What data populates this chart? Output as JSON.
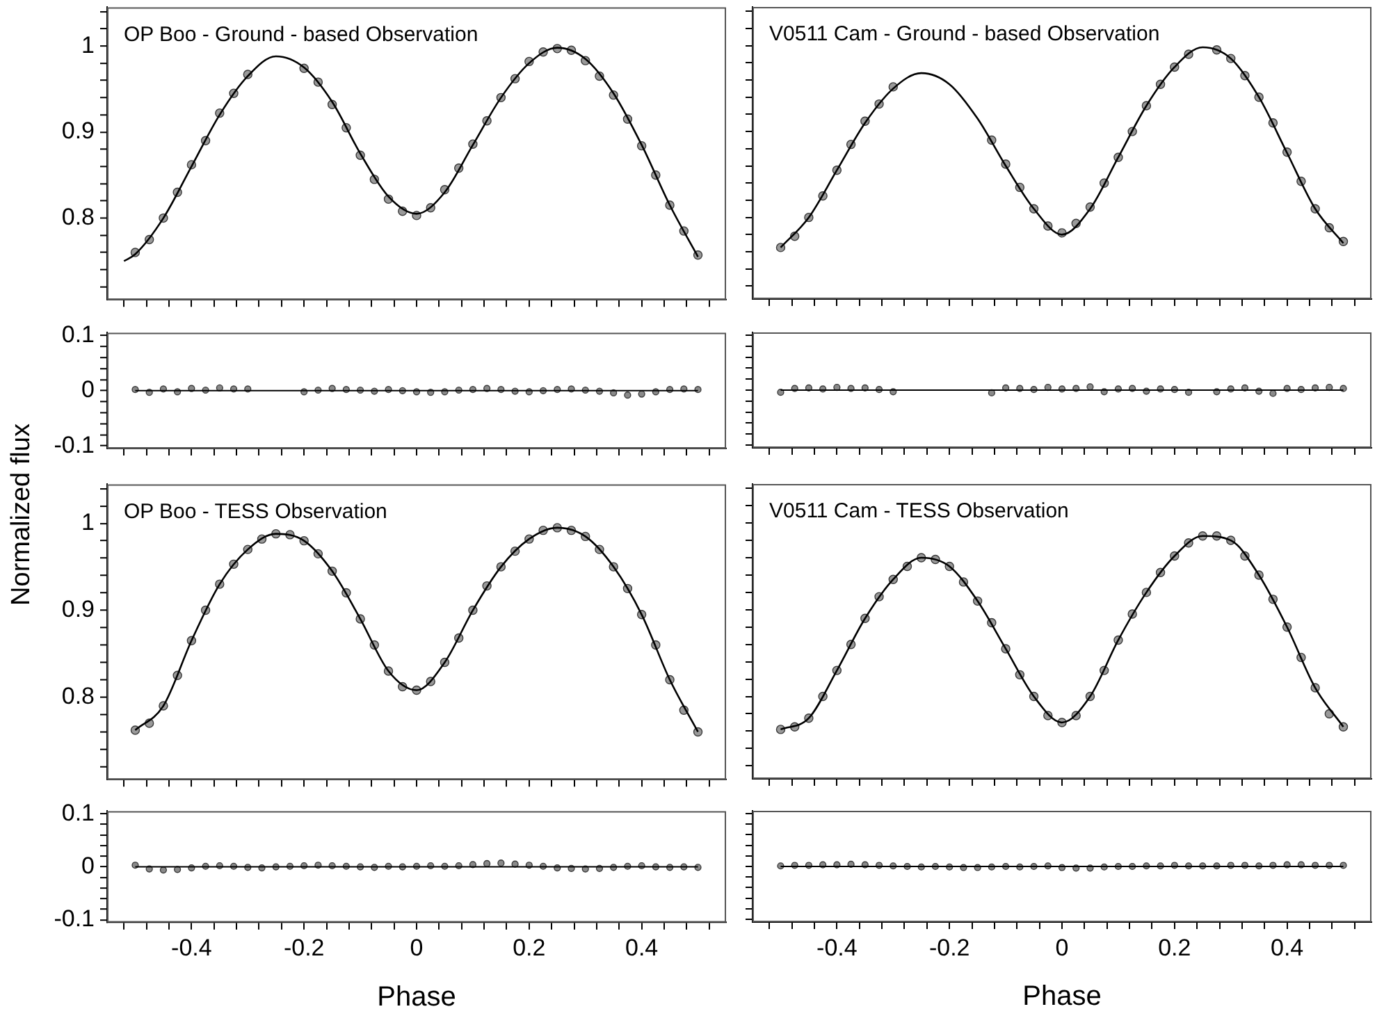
{
  "chart_data": [
    {
      "type": "scatter",
      "title": "OP Boo - Ground - based Observation",
      "ylabel": "Normalized flux",
      "xlim": [
        -0.55,
        0.55
      ],
      "xticks": [
        {
          "value": -0.52,
          "label": null
        },
        {
          "value": -0.48,
          "label": null
        },
        {
          "value": -0.44,
          "label": null
        },
        -0.4,
        {
          "value": -0.36,
          "label": null
        },
        {
          "value": -0.32,
          "label": null
        },
        {
          "value": -0.28,
          "label": null
        },
        {
          "value": -0.24,
          "label": null
        },
        -0.2,
        {
          "value": -0.16,
          "label": null
        },
        {
          "value": -0.12,
          "label": null
        },
        {
          "value": -0.08,
          "label": null
        },
        {
          "value": -0.04,
          "label": null
        },
        0,
        {
          "value": 0.04,
          "label": null
        },
        {
          "value": 0.08,
          "label": null
        },
        {
          "value": 0.12,
          "label": null
        },
        {
          "value": 0.16,
          "label": null
        },
        0.2,
        {
          "value": 0.24,
          "label": null
        },
        {
          "value": 0.28,
          "label": null
        },
        {
          "value": 0.32,
          "label": null
        },
        {
          "value": 0.36,
          "label": null
        },
        0.4,
        {
          "value": 0.44,
          "label": null
        },
        {
          "value": 0.48,
          "label": null
        },
        {
          "value": 0.52,
          "label": null
        }
      ],
      "ylim": [
        0.705,
        1.045
      ],
      "yticks": [
        {
          "value": 0.72,
          "label": null
        },
        {
          "value": 0.74,
          "label": null
        },
        {
          "value": 0.76,
          "label": null
        },
        {
          "value": 0.78,
          "label": null
        },
        0.8,
        {
          "value": 0.82,
          "label": null
        },
        {
          "value": 0.84,
          "label": null
        },
        {
          "value": 0.86,
          "label": null
        },
        {
          "value": 0.88,
          "label": null
        },
        0.9,
        {
          "value": 0.92,
          "label": null
        },
        {
          "value": 0.94,
          "label": null
        },
        {
          "value": 0.96,
          "label": null
        },
        {
          "value": 0.98,
          "label": null
        },
        1,
        {
          "value": 1.02,
          "label": null
        },
        {
          "value": 1.04,
          "label": null
        }
      ],
      "tick_labels": "y",
      "series": [
        {
          "type": "scatter",
          "marker": "circle",
          "color": "#9a9a9a",
          "x": [
            -0.5,
            -0.475,
            -0.45,
            -0.425,
            -0.4,
            -0.375,
            -0.35,
            -0.325,
            -0.3,
            -0.2,
            -0.175,
            -0.15,
            -0.125,
            -0.1,
            -0.075,
            -0.05,
            -0.025,
            0,
            0.025,
            0.05,
            0.075,
            0.1,
            0.125,
            0.15,
            0.175,
            0.2,
            0.225,
            0.25,
            0.275,
            0.3,
            0.325,
            0.35,
            0.375,
            0.4,
            0.425,
            0.45,
            0.475,
            0.5
          ],
          "values": [
            0.76,
            0.775,
            0.8,
            0.83,
            0.862,
            0.89,
            0.922,
            0.945,
            0.967,
            0.974,
            0.958,
            0.932,
            0.905,
            0.873,
            0.845,
            0.822,
            0.808,
            0.803,
            0.812,
            0.833,
            0.858,
            0.886,
            0.913,
            0.94,
            0.962,
            0.982,
            0.993,
            0.997,
            0.995,
            0.983,
            0.965,
            0.943,
            0.915,
            0.884,
            0.85,
            0.815,
            0.785,
            0.757
          ]
        },
        {
          "type": "line",
          "color": "#000000",
          "x": [
            -0.52,
            -0.5,
            -0.45,
            -0.4,
            -0.35,
            -0.3,
            -0.25,
            -0.2,
            -0.15,
            -0.1,
            -0.05,
            0,
            0.05,
            0.1,
            0.15,
            0.2,
            0.25,
            0.3,
            0.35,
            0.4,
            0.45,
            0.5
          ],
          "values": [
            0.75,
            0.758,
            0.8,
            0.86,
            0.92,
            0.965,
            0.988,
            0.975,
            0.935,
            0.875,
            0.825,
            0.805,
            0.83,
            0.885,
            0.94,
            0.98,
            0.998,
            0.985,
            0.945,
            0.885,
            0.815,
            0.755
          ]
        }
      ]
    },
    {
      "type": "scatter",
      "title": "V0511 Cam - Ground - based Observation",
      "xlim": [
        -0.55,
        0.55
      ],
      "xticks": [
        {
          "value": -0.52,
          "label": null
        },
        {
          "value": -0.48,
          "label": null
        },
        {
          "value": -0.44,
          "label": null
        },
        -0.4,
        {
          "value": -0.36,
          "label": null
        },
        {
          "value": -0.32,
          "label": null
        },
        {
          "value": -0.28,
          "label": null
        },
        {
          "value": -0.24,
          "label": null
        },
        -0.2,
        {
          "value": -0.16,
          "label": null
        },
        {
          "value": -0.12,
          "label": null
        },
        {
          "value": -0.08,
          "label": null
        },
        {
          "value": -0.04,
          "label": null
        },
        0,
        {
          "value": 0.04,
          "label": null
        },
        {
          "value": 0.08,
          "label": null
        },
        {
          "value": 0.12,
          "label": null
        },
        {
          "value": 0.16,
          "label": null
        },
        0.2,
        {
          "value": 0.24,
          "label": null
        },
        {
          "value": 0.28,
          "label": null
        },
        {
          "value": 0.32,
          "label": null
        },
        {
          "value": 0.36,
          "label": null
        },
        0.4,
        {
          "value": 0.44,
          "label": null
        },
        {
          "value": 0.48,
          "label": null
        },
        {
          "value": 0.52,
          "label": null
        }
      ],
      "ylim": [
        0.705,
        1.045
      ],
      "yticks": [
        {
          "value": 0.72,
          "label": null
        },
        {
          "value": 0.74,
          "label": null
        },
        {
          "value": 0.76,
          "label": null
        },
        {
          "value": 0.78,
          "label": null
        },
        0.8,
        {
          "value": 0.82,
          "label": null
        },
        {
          "value": 0.84,
          "label": null
        },
        {
          "value": 0.86,
          "label": null
        },
        {
          "value": 0.88,
          "label": null
        },
        0.9,
        {
          "value": 0.92,
          "label": null
        },
        {
          "value": 0.94,
          "label": null
        },
        {
          "value": 0.96,
          "label": null
        },
        {
          "value": 0.98,
          "label": null
        },
        1,
        {
          "value": 1.02,
          "label": null
        },
        {
          "value": 1.04,
          "label": null
        }
      ],
      "tick_labels": false,
      "series": [
        {
          "type": "scatter",
          "marker": "circle",
          "color": "#9a9a9a",
          "x": [
            -0.5,
            -0.475,
            -0.45,
            -0.425,
            -0.4,
            -0.375,
            -0.35,
            -0.325,
            -0.3,
            -0.125,
            -0.1,
            -0.075,
            -0.05,
            -0.025,
            0,
            0.025,
            0.05,
            0.075,
            0.1,
            0.125,
            0.15,
            0.175,
            0.2,
            0.225,
            0.275,
            0.3,
            0.325,
            0.35,
            0.375,
            0.4,
            0.425,
            0.45,
            0.475,
            0.5
          ],
          "values": [
            0.765,
            0.778,
            0.8,
            0.825,
            0.855,
            0.885,
            0.912,
            0.932,
            0.952,
            0.89,
            0.862,
            0.835,
            0.81,
            0.79,
            0.782,
            0.793,
            0.812,
            0.84,
            0.87,
            0.9,
            0.93,
            0.955,
            0.975,
            0.99,
            0.995,
            0.985,
            0.965,
            0.94,
            0.91,
            0.876,
            0.842,
            0.81,
            0.788,
            0.772
          ]
        },
        {
          "type": "line",
          "color": "#000000",
          "x": [
            -0.5,
            -0.45,
            -0.4,
            -0.35,
            -0.3,
            -0.25,
            -0.2,
            -0.15,
            -0.1,
            -0.05,
            0,
            0.05,
            0.1,
            0.15,
            0.2,
            0.25,
            0.3,
            0.35,
            0.4,
            0.45,
            0.5
          ],
          "values": [
            0.765,
            0.8,
            0.855,
            0.91,
            0.95,
            0.968,
            0.955,
            0.915,
            0.86,
            0.81,
            0.78,
            0.81,
            0.87,
            0.93,
            0.975,
            0.998,
            0.985,
            0.94,
            0.875,
            0.81,
            0.77
          ]
        }
      ]
    },
    {
      "type": "scatter",
      "xlim": [
        -0.55,
        0.55
      ],
      "xticks": [
        {
          "value": -0.52,
          "label": null
        },
        {
          "value": -0.48,
          "label": null
        },
        {
          "value": -0.44,
          "label": null
        },
        -0.4,
        {
          "value": -0.36,
          "label": null
        },
        {
          "value": -0.32,
          "label": null
        },
        {
          "value": -0.28,
          "label": null
        },
        {
          "value": -0.24,
          "label": null
        },
        -0.2,
        {
          "value": -0.16,
          "label": null
        },
        {
          "value": -0.12,
          "label": null
        },
        {
          "value": -0.08,
          "label": null
        },
        {
          "value": -0.04,
          "label": null
        },
        0,
        {
          "value": 0.04,
          "label": null
        },
        {
          "value": 0.08,
          "label": null
        },
        {
          "value": 0.12,
          "label": null
        },
        {
          "value": 0.16,
          "label": null
        },
        0.2,
        {
          "value": 0.24,
          "label": null
        },
        {
          "value": 0.28,
          "label": null
        },
        {
          "value": 0.32,
          "label": null
        },
        {
          "value": 0.36,
          "label": null
        },
        0.4,
        {
          "value": 0.44,
          "label": null
        },
        {
          "value": 0.48,
          "label": null
        },
        {
          "value": 0.52,
          "label": null
        }
      ],
      "ylim": [
        -0.105,
        0.105
      ],
      "yticks": [
        -0.1,
        {
          "value": -0.08,
          "label": null
        },
        {
          "value": -0.06,
          "label": null
        },
        {
          "value": -0.04,
          "label": null
        },
        {
          "value": -0.02,
          "label": null
        },
        0,
        {
          "value": 0.02,
          "label": null
        },
        {
          "value": 0.04,
          "label": null
        },
        {
          "value": 0.06,
          "label": null
        },
        {
          "value": 0.08,
          "label": null
        },
        0.1
      ],
      "tick_labels": "y",
      "series": [
        {
          "type": "scatter",
          "marker": "circle",
          "color": "#8a8a8a",
          "x": [
            -0.5,
            -0.475,
            -0.45,
            -0.425,
            -0.4,
            -0.375,
            -0.35,
            -0.325,
            -0.3,
            -0.2,
            -0.175,
            -0.15,
            -0.125,
            -0.1,
            -0.075,
            -0.05,
            -0.025,
            0,
            0.025,
            0.05,
            0.075,
            0.1,
            0.125,
            0.15,
            0.175,
            0.2,
            0.225,
            0.25,
            0.275,
            0.3,
            0.325,
            0.35,
            0.375,
            0.4,
            0.425,
            0.45,
            0.475,
            0.5
          ],
          "values": [
            0.002,
            -0.003,
            0.003,
            -0.002,
            0.004,
            0.001,
            0.005,
            0.003,
            0.003,
            -0.002,
            0.001,
            0.004,
            0.002,
            0.001,
            -0.001,
            0.002,
            0,
            -0.002,
            -0.003,
            -0.002,
            0.001,
            0.002,
            0.004,
            0.002,
            -0.001,
            -0.002,
            0,
            0.002,
            0.003,
            0.001,
            -0.001,
            -0.004,
            -0.008,
            -0.006,
            -0.002,
            0.002,
            0.003,
            0.002
          ]
        },
        {
          "type": "line",
          "color": "#000000",
          "x": [
            -0.5,
            0.5
          ],
          "values": [
            0,
            0
          ]
        }
      ]
    },
    {
      "type": "scatter",
      "xlim": [
        -0.55,
        0.55
      ],
      "xticks": [
        {
          "value": -0.52,
          "label": null
        },
        {
          "value": -0.48,
          "label": null
        },
        {
          "value": -0.44,
          "label": null
        },
        -0.4,
        {
          "value": -0.36,
          "label": null
        },
        {
          "value": -0.32,
          "label": null
        },
        {
          "value": -0.28,
          "label": null
        },
        {
          "value": -0.24,
          "label": null
        },
        -0.2,
        {
          "value": -0.16,
          "label": null
        },
        {
          "value": -0.12,
          "label": null
        },
        {
          "value": -0.08,
          "label": null
        },
        {
          "value": -0.04,
          "label": null
        },
        0,
        {
          "value": 0.04,
          "label": null
        },
        {
          "value": 0.08,
          "label": null
        },
        {
          "value": 0.12,
          "label": null
        },
        {
          "value": 0.16,
          "label": null
        },
        0.2,
        {
          "value": 0.24,
          "label": null
        },
        {
          "value": 0.28,
          "label": null
        },
        {
          "value": 0.32,
          "label": null
        },
        {
          "value": 0.36,
          "label": null
        },
        0.4,
        {
          "value": 0.44,
          "label": null
        },
        {
          "value": 0.48,
          "label": null
        },
        {
          "value": 0.52,
          "label": null
        }
      ],
      "ylim": [
        -0.105,
        0.105
      ],
      "yticks": [
        -0.1,
        {
          "value": -0.08,
          "label": null
        },
        {
          "value": -0.06,
          "label": null
        },
        {
          "value": -0.04,
          "label": null
        },
        {
          "value": -0.02,
          "label": null
        },
        0,
        {
          "value": 0.02,
          "label": null
        },
        {
          "value": 0.04,
          "label": null
        },
        {
          "value": 0.06,
          "label": null
        },
        {
          "value": 0.08,
          "label": null
        },
        0.1
      ],
      "tick_labels": false,
      "series": [
        {
          "type": "scatter",
          "marker": "circle",
          "color": "#8a8a8a",
          "x": [
            -0.5,
            -0.475,
            -0.45,
            -0.425,
            -0.4,
            -0.375,
            -0.35,
            -0.325,
            -0.3,
            -0.125,
            -0.1,
            -0.075,
            -0.05,
            -0.025,
            0,
            0.025,
            0.05,
            0.075,
            0.1,
            0.125,
            0.15,
            0.175,
            0.2,
            0.225,
            0.275,
            0.3,
            0.325,
            0.35,
            0.375,
            0.4,
            0.425,
            0.45,
            0.475,
            0.5
          ],
          "values": [
            -0.004,
            0.003,
            0.004,
            0.002,
            0.005,
            0.003,
            0.004,
            0.001,
            -0.003,
            -0.005,
            0.004,
            0.003,
            0.001,
            0.005,
            0.002,
            0.003,
            0.006,
            -0.003,
            0.002,
            0.003,
            -0.002,
            0.002,
            0.001,
            -0.004,
            -0.003,
            0.002,
            0.004,
            -0.002,
            -0.006,
            0.003,
            0.001,
            0.004,
            0.005,
            0.003
          ]
        },
        {
          "type": "line",
          "color": "#000000",
          "x": [
            -0.5,
            0.5
          ],
          "values": [
            0,
            0
          ]
        }
      ]
    },
    {
      "type": "scatter",
      "title": "OP Boo - TESS Observation",
      "xlim": [
        -0.55,
        0.55
      ],
      "xticks": [
        {
          "value": -0.52,
          "label": null
        },
        {
          "value": -0.48,
          "label": null
        },
        {
          "value": -0.44,
          "label": null
        },
        -0.4,
        {
          "value": -0.36,
          "label": null
        },
        {
          "value": -0.32,
          "label": null
        },
        {
          "value": -0.28,
          "label": null
        },
        {
          "value": -0.24,
          "label": null
        },
        -0.2,
        {
          "value": -0.16,
          "label": null
        },
        {
          "value": -0.12,
          "label": null
        },
        {
          "value": -0.08,
          "label": null
        },
        {
          "value": -0.04,
          "label": null
        },
        0,
        {
          "value": 0.04,
          "label": null
        },
        {
          "value": 0.08,
          "label": null
        },
        {
          "value": 0.12,
          "label": null
        },
        {
          "value": 0.16,
          "label": null
        },
        0.2,
        {
          "value": 0.24,
          "label": null
        },
        {
          "value": 0.28,
          "label": null
        },
        {
          "value": 0.32,
          "label": null
        },
        {
          "value": 0.36,
          "label": null
        },
        0.4,
        {
          "value": 0.44,
          "label": null
        },
        {
          "value": 0.48,
          "label": null
        },
        {
          "value": 0.52,
          "label": null
        }
      ],
      "ylim": [
        0.705,
        1.045
      ],
      "yticks": [
        {
          "value": 0.72,
          "label": null
        },
        {
          "value": 0.74,
          "label": null
        },
        {
          "value": 0.76,
          "label": null
        },
        {
          "value": 0.78,
          "label": null
        },
        0.8,
        {
          "value": 0.82,
          "label": null
        },
        {
          "value": 0.84,
          "label": null
        },
        {
          "value": 0.86,
          "label": null
        },
        {
          "value": 0.88,
          "label": null
        },
        0.9,
        {
          "value": 0.92,
          "label": null
        },
        {
          "value": 0.94,
          "label": null
        },
        {
          "value": 0.96,
          "label": null
        },
        {
          "value": 0.98,
          "label": null
        },
        1,
        {
          "value": 1.02,
          "label": null
        },
        {
          "value": 1.04,
          "label": null
        }
      ],
      "tick_labels": "y",
      "series": [
        {
          "type": "scatter",
          "marker": "circle",
          "color": "#9a9a9a",
          "x": [
            -0.5,
            -0.475,
            -0.45,
            -0.425,
            -0.4,
            -0.375,
            -0.35,
            -0.325,
            -0.3,
            -0.275,
            -0.25,
            -0.225,
            -0.2,
            -0.175,
            -0.15,
            -0.125,
            -0.1,
            -0.075,
            -0.05,
            -0.025,
            0,
            0.025,
            0.05,
            0.075,
            0.1,
            0.125,
            0.15,
            0.175,
            0.2,
            0.225,
            0.25,
            0.275,
            0.3,
            0.325,
            0.35,
            0.375,
            0.4,
            0.425,
            0.45,
            0.475,
            0.5
          ],
          "values": [
            0.762,
            0.77,
            0.79,
            0.825,
            0.865,
            0.9,
            0.93,
            0.953,
            0.97,
            0.982,
            0.988,
            0.987,
            0.98,
            0.965,
            0.945,
            0.92,
            0.89,
            0.86,
            0.83,
            0.812,
            0.808,
            0.818,
            0.84,
            0.868,
            0.9,
            0.928,
            0.95,
            0.968,
            0.982,
            0.992,
            0.995,
            0.992,
            0.985,
            0.97,
            0.95,
            0.925,
            0.895,
            0.86,
            0.82,
            0.785,
            0.76
          ]
        },
        {
          "type": "line",
          "color": "#000000",
          "x": [
            -0.5,
            -0.45,
            -0.4,
            -0.35,
            -0.3,
            -0.25,
            -0.2,
            -0.15,
            -0.1,
            -0.05,
            0,
            0.05,
            0.1,
            0.15,
            0.2,
            0.25,
            0.3,
            0.35,
            0.4,
            0.45,
            0.5
          ],
          "values": [
            0.762,
            0.79,
            0.865,
            0.93,
            0.97,
            0.988,
            0.98,
            0.945,
            0.89,
            0.83,
            0.808,
            0.84,
            0.9,
            0.95,
            0.982,
            0.995,
            0.985,
            0.95,
            0.895,
            0.82,
            0.76
          ]
        }
      ]
    },
    {
      "type": "scatter",
      "title": "V0511 Cam - TESS Observation",
      "xlim": [
        -0.55,
        0.55
      ],
      "xticks": [
        {
          "value": -0.52,
          "label": null
        },
        {
          "value": -0.48,
          "label": null
        },
        {
          "value": -0.44,
          "label": null
        },
        -0.4,
        {
          "value": -0.36,
          "label": null
        },
        {
          "value": -0.32,
          "label": null
        },
        {
          "value": -0.28,
          "label": null
        },
        {
          "value": -0.24,
          "label": null
        },
        -0.2,
        {
          "value": -0.16,
          "label": null
        },
        {
          "value": -0.12,
          "label": null
        },
        {
          "value": -0.08,
          "label": null
        },
        {
          "value": -0.04,
          "label": null
        },
        0,
        {
          "value": 0.04,
          "label": null
        },
        {
          "value": 0.08,
          "label": null
        },
        {
          "value": 0.12,
          "label": null
        },
        {
          "value": 0.16,
          "label": null
        },
        0.2,
        {
          "value": 0.24,
          "label": null
        },
        {
          "value": 0.28,
          "label": null
        },
        {
          "value": 0.32,
          "label": null
        },
        {
          "value": 0.36,
          "label": null
        },
        0.4,
        {
          "value": 0.44,
          "label": null
        },
        {
          "value": 0.48,
          "label": null
        },
        {
          "value": 0.52,
          "label": null
        }
      ],
      "ylim": [
        0.705,
        1.045
      ],
      "yticks": [
        {
          "value": 0.72,
          "label": null
        },
        {
          "value": 0.74,
          "label": null
        },
        {
          "value": 0.76,
          "label": null
        },
        {
          "value": 0.78,
          "label": null
        },
        0.8,
        {
          "value": 0.82,
          "label": null
        },
        {
          "value": 0.84,
          "label": null
        },
        {
          "value": 0.86,
          "label": null
        },
        {
          "value": 0.88,
          "label": null
        },
        0.9,
        {
          "value": 0.92,
          "label": null
        },
        {
          "value": 0.94,
          "label": null
        },
        {
          "value": 0.96,
          "label": null
        },
        {
          "value": 0.98,
          "label": null
        },
        1,
        {
          "value": 1.02,
          "label": null
        },
        {
          "value": 1.04,
          "label": null
        }
      ],
      "tick_labels": false,
      "series": [
        {
          "type": "scatter",
          "marker": "circle",
          "color": "#9a9a9a",
          "x": [
            -0.5,
            -0.475,
            -0.45,
            -0.425,
            -0.4,
            -0.375,
            -0.35,
            -0.325,
            -0.3,
            -0.275,
            -0.25,
            -0.225,
            -0.2,
            -0.175,
            -0.15,
            -0.125,
            -0.1,
            -0.075,
            -0.05,
            -0.025,
            0,
            0.025,
            0.05,
            0.075,
            0.1,
            0.125,
            0.15,
            0.175,
            0.2,
            0.225,
            0.25,
            0.275,
            0.3,
            0.325,
            0.35,
            0.375,
            0.4,
            0.425,
            0.45,
            0.475,
            0.5
          ],
          "values": [
            0.762,
            0.765,
            0.775,
            0.8,
            0.83,
            0.86,
            0.89,
            0.915,
            0.935,
            0.95,
            0.96,
            0.958,
            0.95,
            0.932,
            0.91,
            0.885,
            0.855,
            0.825,
            0.8,
            0.778,
            0.77,
            0.778,
            0.8,
            0.83,
            0.865,
            0.895,
            0.92,
            0.943,
            0.962,
            0.977,
            0.985,
            0.985,
            0.98,
            0.962,
            0.94,
            0.912,
            0.88,
            0.845,
            0.81,
            0.78,
            0.765
          ]
        },
        {
          "type": "line",
          "color": "#000000",
          "x": [
            -0.5,
            -0.45,
            -0.4,
            -0.35,
            -0.3,
            -0.25,
            -0.2,
            -0.15,
            -0.1,
            -0.05,
            0,
            0.05,
            0.1,
            0.15,
            0.2,
            0.25,
            0.3,
            0.35,
            0.4,
            0.45,
            0.5
          ],
          "values": [
            0.762,
            0.775,
            0.83,
            0.89,
            0.935,
            0.96,
            0.95,
            0.91,
            0.855,
            0.8,
            0.77,
            0.8,
            0.865,
            0.92,
            0.962,
            0.985,
            0.98,
            0.94,
            0.88,
            0.81,
            0.765
          ]
        }
      ]
    },
    {
      "type": "scatter",
      "xlabel": "Phase",
      "xlim": [
        -0.55,
        0.55
      ],
      "xticks": [
        {
          "value": -0.52,
          "label": null
        },
        {
          "value": -0.48,
          "label": null
        },
        {
          "value": -0.44,
          "label": null
        },
        -0.4,
        {
          "value": -0.36,
          "label": null
        },
        {
          "value": -0.32,
          "label": null
        },
        {
          "value": -0.28,
          "label": null
        },
        {
          "value": -0.24,
          "label": null
        },
        -0.2,
        {
          "value": -0.16,
          "label": null
        },
        {
          "value": -0.12,
          "label": null
        },
        {
          "value": -0.08,
          "label": null
        },
        {
          "value": -0.04,
          "label": null
        },
        0,
        {
          "value": 0.04,
          "label": null
        },
        {
          "value": 0.08,
          "label": null
        },
        {
          "value": 0.12,
          "label": null
        },
        {
          "value": 0.16,
          "label": null
        },
        0.2,
        {
          "value": 0.24,
          "label": null
        },
        {
          "value": 0.28,
          "label": null
        },
        {
          "value": 0.32,
          "label": null
        },
        {
          "value": 0.36,
          "label": null
        },
        0.4,
        {
          "value": 0.44,
          "label": null
        },
        {
          "value": 0.48,
          "label": null
        },
        {
          "value": 0.52,
          "label": null
        }
      ],
      "ylim": [
        -0.105,
        0.105
      ],
      "yticks": [
        -0.1,
        {
          "value": -0.08,
          "label": null
        },
        {
          "value": -0.06,
          "label": null
        },
        {
          "value": -0.04,
          "label": null
        },
        {
          "value": -0.02,
          "label": null
        },
        0,
        {
          "value": 0.02,
          "label": null
        },
        {
          "value": 0.04,
          "label": null
        },
        {
          "value": 0.06,
          "label": null
        },
        {
          "value": 0.08,
          "label": null
        },
        0.1
      ],
      "series": [
        {
          "type": "scatter",
          "marker": "circle",
          "color": "#8a8a8a",
          "x": [
            -0.5,
            -0.475,
            -0.45,
            -0.425,
            -0.4,
            -0.375,
            -0.35,
            -0.325,
            -0.3,
            -0.275,
            -0.25,
            -0.225,
            -0.2,
            -0.175,
            -0.15,
            -0.125,
            -0.1,
            -0.075,
            -0.05,
            -0.025,
            0,
            0.025,
            0.05,
            0.075,
            0.1,
            0.125,
            0.15,
            0.175,
            0.2,
            0.225,
            0.25,
            0.275,
            0.3,
            0.325,
            0.35,
            0.375,
            0.4,
            0.425,
            0.45,
            0.475,
            0.5
          ],
          "values": [
            0.003,
            -0.004,
            -0.006,
            -0.005,
            -0.002,
            0.001,
            0.002,
            0.001,
            -0.001,
            -0.002,
            0,
            0.001,
            0.002,
            0.003,
            0.002,
            0.001,
            0,
            -0.001,
            0.001,
            0,
            0.001,
            0.002,
            0.001,
            0.002,
            0.004,
            0.006,
            0.007,
            0.005,
            0.003,
            0.001,
            -0.002,
            -0.003,
            -0.004,
            -0.003,
            -0.001,
            0.001,
            0.002,
            0,
            -0.001,
            0,
            -0.001
          ]
        },
        {
          "type": "line",
          "color": "#000000",
          "x": [
            -0.5,
            0.5
          ],
          "values": [
            0,
            0
          ]
        }
      ]
    },
    {
      "type": "scatter",
      "xlabel": "Phase",
      "xlim": [
        -0.55,
        0.55
      ],
      "xticks": [
        {
          "value": -0.52,
          "label": null
        },
        {
          "value": -0.48,
          "label": null
        },
        {
          "value": -0.44,
          "label": null
        },
        -0.4,
        {
          "value": -0.36,
          "label": null
        },
        {
          "value": -0.32,
          "label": null
        },
        {
          "value": -0.28,
          "label": null
        },
        {
          "value": -0.24,
          "label": null
        },
        -0.2,
        {
          "value": -0.16,
          "label": null
        },
        {
          "value": -0.12,
          "label": null
        },
        {
          "value": -0.08,
          "label": null
        },
        {
          "value": -0.04,
          "label": null
        },
        0,
        {
          "value": 0.04,
          "label": null
        },
        {
          "value": 0.08,
          "label": null
        },
        {
          "value": 0.12,
          "label": null
        },
        {
          "value": 0.16,
          "label": null
        },
        0.2,
        {
          "value": 0.24,
          "label": null
        },
        {
          "value": 0.28,
          "label": null
        },
        {
          "value": 0.32,
          "label": null
        },
        {
          "value": 0.36,
          "label": null
        },
        0.4,
        {
          "value": 0.44,
          "label": null
        },
        {
          "value": 0.48,
          "label": null
        },
        {
          "value": 0.52,
          "label": null
        }
      ],
      "ylim": [
        -0.105,
        0.105
      ],
      "yticks": [
        -0.1,
        {
          "value": -0.08,
          "label": null
        },
        {
          "value": -0.06,
          "label": null
        },
        {
          "value": -0.04,
          "label": null
        },
        {
          "value": -0.02,
          "label": null
        },
        0,
        {
          "value": 0.02,
          "label": null
        },
        {
          "value": 0.04,
          "label": null
        },
        {
          "value": 0.06,
          "label": null
        },
        {
          "value": 0.08,
          "label": null
        },
        0.1
      ],
      "tick_labels": "x",
      "series": [
        {
          "type": "scatter",
          "marker": "circle",
          "color": "#8a8a8a",
          "x": [
            -0.5,
            -0.475,
            -0.45,
            -0.425,
            -0.4,
            -0.375,
            -0.35,
            -0.325,
            -0.3,
            -0.275,
            -0.25,
            -0.225,
            -0.2,
            -0.175,
            -0.15,
            -0.125,
            -0.1,
            -0.075,
            -0.05,
            -0.025,
            0,
            0.025,
            0.05,
            0.075,
            0.1,
            0.125,
            0.15,
            0.175,
            0.2,
            0.225,
            0.25,
            0.275,
            0.3,
            0.325,
            0.35,
            0.375,
            0.4,
            0.425,
            0.45,
            0.475,
            0.5
          ],
          "values": [
            0.001,
            0.002,
            0.002,
            0.003,
            0.003,
            0.004,
            0.003,
            0.002,
            0.001,
            0,
            -0.001,
            0,
            -0.001,
            -0.002,
            -0.002,
            -0.001,
            0,
            -0.001,
            0,
            0.001,
            -0.002,
            -0.003,
            -0.003,
            -0.001,
            0,
            0,
            0.001,
            0.001,
            0.002,
            0.001,
            0.001,
            0.001,
            0.002,
            0.002,
            0.001,
            0.002,
            0.003,
            0.003,
            0.002,
            0.002,
            0.002
          ]
        },
        {
          "type": "line",
          "color": "#000000",
          "x": [
            -0.5,
            0.5
          ],
          "values": [
            0,
            0
          ]
        }
      ]
    }
  ]
}
